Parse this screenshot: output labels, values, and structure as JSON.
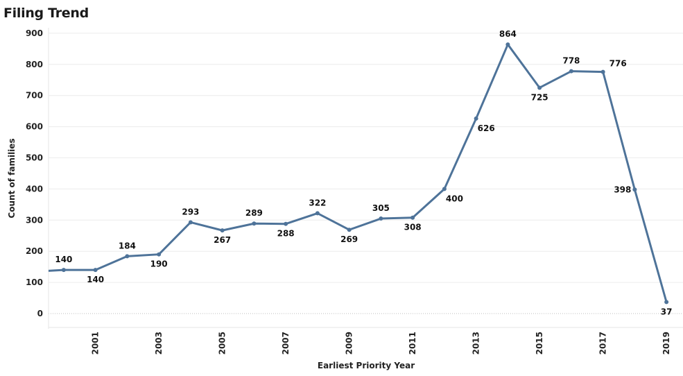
{
  "chart_data": {
    "type": "line",
    "title": "Filing Trend",
    "xlabel": "Earliest Priority Year",
    "ylabel": "Count of families",
    "xlim": [
      1999.5,
      2019.5
    ],
    "ylim": [
      -40,
      930
    ],
    "y_ticks": [
      0,
      100,
      200,
      300,
      400,
      500,
      600,
      700,
      800,
      900
    ],
    "x_ticks": [
      2001,
      2003,
      2005,
      2007,
      2009,
      2011,
      2013,
      2015,
      2017,
      2019
    ],
    "grid": "horizontal",
    "line_color": "#4e7399",
    "series": [
      {
        "points": [
          {
            "x": 1999,
            "y": 134,
            "label": null
          },
          {
            "x": 2000,
            "y": 140,
            "label": "140",
            "pos": "above"
          },
          {
            "x": 2001,
            "y": 140,
            "label": "140",
            "pos": "below"
          },
          {
            "x": 2002,
            "y": 184,
            "label": "184",
            "pos": "above"
          },
          {
            "x": 2003,
            "y": 190,
            "label": "190",
            "pos": "below"
          },
          {
            "x": 2004,
            "y": 293,
            "label": "293",
            "pos": "above"
          },
          {
            "x": 2005,
            "y": 267,
            "label": "267",
            "pos": "below"
          },
          {
            "x": 2006,
            "y": 289,
            "label": "289",
            "pos": "above"
          },
          {
            "x": 2007,
            "y": 288,
            "label": "288",
            "pos": "below"
          },
          {
            "x": 2008,
            "y": 322,
            "label": "322",
            "pos": "above"
          },
          {
            "x": 2009,
            "y": 269,
            "label": "269",
            "pos": "below"
          },
          {
            "x": 2010,
            "y": 305,
            "label": "305",
            "pos": "above"
          },
          {
            "x": 2011,
            "y": 308,
            "label": "308",
            "pos": "below"
          },
          {
            "x": 2012,
            "y": 400,
            "label": "400",
            "pos": "below-right"
          },
          {
            "x": 2013,
            "y": 626,
            "label": "626",
            "pos": "below-right"
          },
          {
            "x": 2014,
            "y": 864,
            "label": "864",
            "pos": "above"
          },
          {
            "x": 2015,
            "y": 725,
            "label": "725",
            "pos": "below"
          },
          {
            "x": 2016,
            "y": 778,
            "label": "778",
            "pos": "above"
          },
          {
            "x": 2017,
            "y": 776,
            "label": "776",
            "pos": "above-right"
          },
          {
            "x": 2018,
            "y": 398,
            "label": "398",
            "pos": "left"
          },
          {
            "x": 2019,
            "y": 37,
            "label": "37",
            "pos": "below"
          }
        ]
      }
    ]
  }
}
